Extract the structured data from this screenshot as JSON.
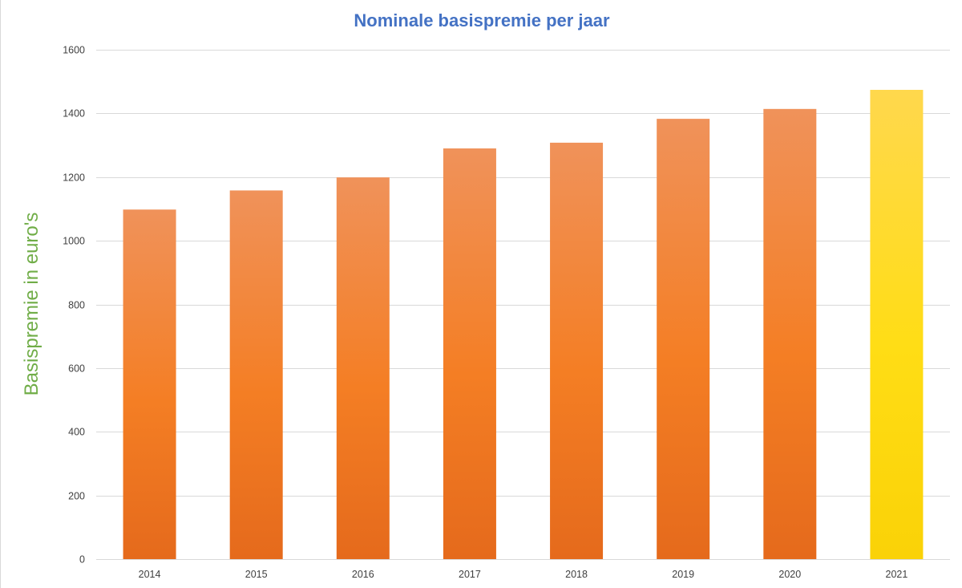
{
  "chart_data": {
    "type": "bar",
    "title": "Nominale basispremie per jaar",
    "xlabel": "",
    "ylabel": "Basispremie in euro's",
    "categories": [
      "2014",
      "2015",
      "2016",
      "2017",
      "2018",
      "2019",
      "2020",
      "2021"
    ],
    "values": [
      1098,
      1158,
      1199,
      1290,
      1308,
      1383,
      1414,
      1474
    ],
    "ylim": [
      0,
      1600
    ],
    "yticks": [
      0,
      200,
      400,
      600,
      800,
      1000,
      1200,
      1400,
      1600
    ],
    "ytick_labels": [
      "0",
      "200",
      "400",
      "600",
      "800",
      "1000",
      "1200",
      "1400",
      "1600"
    ],
    "grid": true,
    "highlight_category": "2021"
  },
  "colors": {
    "title": "#4472c4",
    "ylabel": "#70ad47",
    "gridline": "#d9d9d9",
    "bar_top": "#f0925a",
    "bar_mid": "#f47e24",
    "bar_bottom": "#e56a1c",
    "highlight_top": "#ffd84d",
    "highlight_mid": "#ffdd15",
    "highlight_bottom": "#fad207"
  }
}
